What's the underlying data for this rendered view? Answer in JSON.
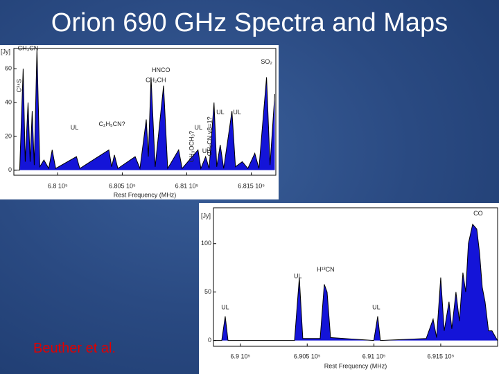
{
  "slide": {
    "title": "Orion 690 GHz Spectra and Maps",
    "caption": "Beuther et al."
  },
  "chart_data": [
    {
      "type": "area",
      "color": "#1414d8",
      "y_label": "[Jy]",
      "x_label": "Rest Frequency (MHz)",
      "xlim": [
        679660,
        681690
      ],
      "ylim": [
        -3,
        72
      ],
      "xticks": [
        {
          "value": 680000,
          "label": "6.8 10⁵"
        },
        {
          "value": 680500,
          "label": "6.805 10⁵"
        },
        {
          "value": 681000,
          "label": "6.81 10⁵"
        },
        {
          "value": 681500,
          "label": "6.815 10⁵"
        }
      ],
      "yticks": [
        0,
        20,
        40,
        60
      ],
      "x": [
        679662,
        679705,
        679732,
        679748,
        679770,
        679786,
        679802,
        679818,
        679839,
        679861,
        679893,
        679930,
        679957,
        679984,
        680145,
        680171,
        680396,
        680418,
        680439,
        680466,
        680600,
        680637,
        680686,
        680702,
        680723,
        680755,
        680820,
        680852,
        680937,
        680964,
        681087,
        681109,
        681146,
        681173,
        681211,
        681232,
        681259,
        681286,
        681350,
        681377,
        681430,
        681473,
        681527,
        681559,
        681618,
        681645,
        681682
      ],
      "values": [
        0,
        0,
        60,
        5,
        40,
        5,
        35,
        3,
        72,
        2,
        6,
        1,
        12,
        1,
        8,
        1,
        12,
        2,
        9,
        1,
        8,
        1,
        30,
        8,
        55,
        2,
        50,
        1,
        12,
        1,
        12,
        1,
        8,
        1,
        40,
        2,
        15,
        1,
        35,
        2,
        5,
        1,
        10,
        1,
        55,
        3,
        45
      ],
      "annotations": [
        {
          "text": "CH₃CN",
          "x": 679770,
          "y": 72
        },
        {
          "text": "C³⁴S",
          "x": 679705,
          "y": 50,
          "vertical": true
        },
        {
          "text": "HNCO",
          "x": 680800,
          "y": 59
        },
        {
          "text": "CH₂CH",
          "x": 680760,
          "y": 53
        },
        {
          "text": "UL",
          "x": 680130,
          "y": 25
        },
        {
          "text": "C₂H₅CN?",
          "x": 680420,
          "y": 27
        },
        {
          "text": "CH₃OCH₃?",
          "x": 681040,
          "y": 14,
          "vertical": true
        },
        {
          "text": "UL",
          "x": 681090,
          "y": 25
        },
        {
          "text": "UL",
          "x": 681150,
          "y": 11
        },
        {
          "text": "CH₃CN v8=1?",
          "x": 681180,
          "y": 20,
          "vertical": true
        },
        {
          "text": "UL",
          "x": 681260,
          "y": 34
        },
        {
          "text": "UL",
          "x": 681390,
          "y": 34
        },
        {
          "text": "SO₂",
          "x": 681618,
          "y": 64
        }
      ]
    },
    {
      "type": "area",
      "color": "#1414d8",
      "y_label": "[Jy]",
      "x_label": "Rest Frequency (MHz)",
      "xlim": [
        689798,
        691926
      ],
      "ylim": [
        -6,
        137
      ],
      "xticks": [
        {
          "value": 690000,
          "label": "6.9 10⁵"
        },
        {
          "value": 690500,
          "label": "6.905 10⁵"
        },
        {
          "value": 691000,
          "label": "6.91 10⁵"
        },
        {
          "value": 691500,
          "label": "6.915 10⁵"
        }
      ],
      "yticks": [
        0,
        50,
        100
      ],
      "x": [
        689798,
        689860,
        689886,
        689907,
        690405,
        690441,
        690467,
        690597,
        690628,
        690649,
        690675,
        690999,
        691028,
        691048,
        691391,
        691443,
        691469,
        691500,
        691526,
        691562,
        691583,
        691614,
        691640,
        691666,
        691687,
        691707,
        691739,
        691770,
        691791,
        691811,
        691832,
        691858,
        691884,
        691925
      ],
      "values": [
        0,
        0,
        25,
        0,
        0,
        65,
        2,
        2,
        58,
        50,
        3,
        0,
        25,
        0,
        2,
        22,
        3,
        65,
        10,
        40,
        12,
        50,
        20,
        70,
        50,
        100,
        120,
        115,
        90,
        55,
        40,
        10,
        10,
        0
      ],
      "annotations": [
        {
          "text": "CO",
          "x": 691780,
          "y": 131
        },
        {
          "text": "UL",
          "x": 689886,
          "y": 34
        },
        {
          "text": "UL",
          "x": 690430,
          "y": 66
        },
        {
          "text": "H¹³CN",
          "x": 690638,
          "y": 73
        },
        {
          "text": "UL",
          "x": 691017,
          "y": 34
        }
      ]
    }
  ]
}
